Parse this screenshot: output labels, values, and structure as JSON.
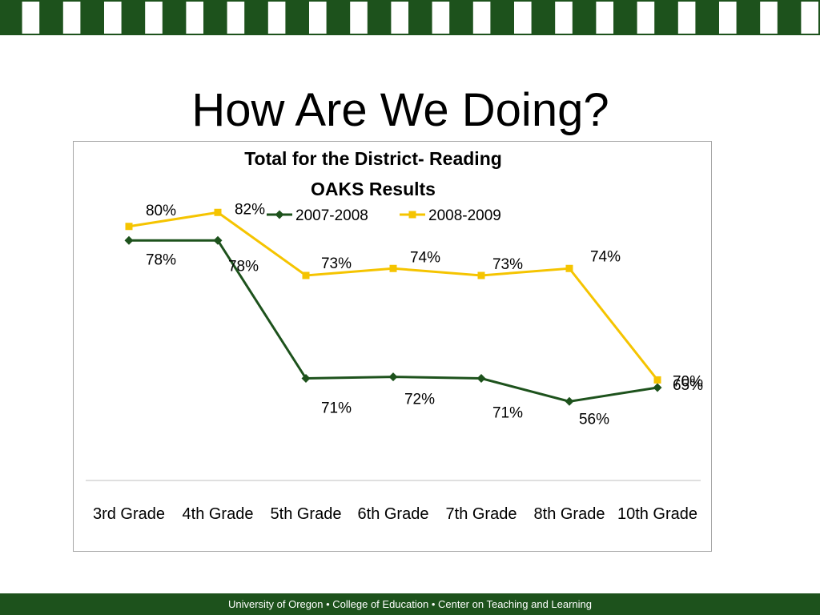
{
  "slide": {
    "title": "How Are We Doing?",
    "footer": "University of Oregon • College of Education • Center on Teaching and Learning"
  },
  "colors": {
    "banner_green": "#1d521c",
    "series_2007": "#1d521c",
    "series_2008": "#f5c400"
  },
  "chart_data": {
    "type": "line",
    "title_lines": [
      "Total for the District- Reading",
      "OAKS Results"
    ],
    "categories": [
      "3rd Grade",
      "4th Grade",
      "5th Grade",
      "6th Grade",
      "7th Grade",
      "8th Grade",
      "10th Grade"
    ],
    "series": [
      {
        "name": "2007-2008",
        "values": [
          78,
          78,
          71,
          72,
          71,
          56,
          65
        ],
        "labels": [
          "78%",
          "78%",
          "71%",
          "72%",
          "71%",
          "56%",
          "65%"
        ],
        "color": "#1d521c",
        "marker": "diamond"
      },
      {
        "name": "2008-2009",
        "values": [
          80,
          82,
          73,
          74,
          73,
          74,
          70
        ],
        "labels": [
          "80%",
          "82%",
          "73%",
          "74%",
          "73%",
          "74%",
          "70%"
        ],
        "color": "#f5c400",
        "marker": "square"
      }
    ],
    "legend_position": "top",
    "grid": false
  }
}
